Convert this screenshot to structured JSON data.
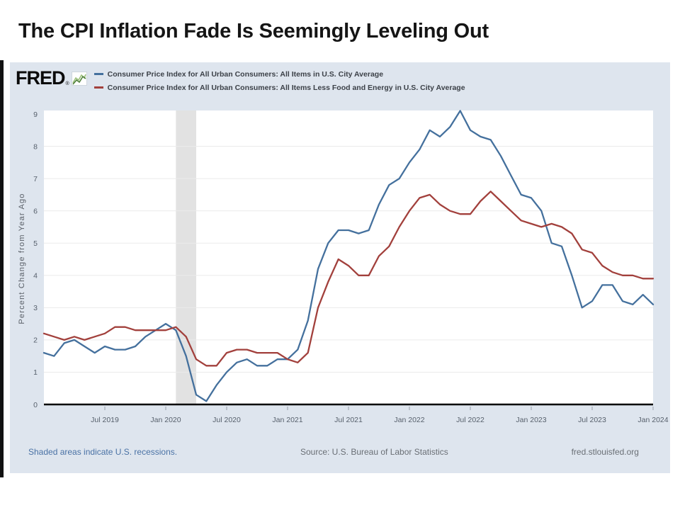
{
  "page": {
    "title": "The CPI Inflation Fade Is Seemingly Leveling Out"
  },
  "chart": {
    "brand": {
      "name": "FRED",
      "reg": "®"
    },
    "legend": [
      {
        "label": "Consumer Price Index for All Urban Consumers: All Items in U.S. City Average",
        "color": "#44709d"
      },
      {
        "label": "Consumer Price Index for All Urban Consumers: All Items Less Food and Energy in U.S. City Average",
        "color": "#a2403c"
      }
    ],
    "footer": {
      "recessions_note": "Shaded areas indicate U.S. recessions.",
      "source": "Source: U.S. Bureau of Labor Statistics",
      "site": "fred.stlouisfed.org"
    },
    "colors": {
      "container_bg": "#dee5ee",
      "plot_bg": "#ffffff",
      "grid": "#ebebeb",
      "recession_band": "#e2e2e2",
      "axis": "#000000",
      "tick_label": "#57606c",
      "link_blue": "#4a72a5",
      "footer_gray": "#6a6f75",
      "spark_green_light": "#9bc07a",
      "spark_green_dark": "#4e7f3a"
    }
  },
  "chart_data": {
    "type": "line",
    "title": "",
    "xlabel": "",
    "ylabel": "Percent Change from Year Ago",
    "ylim": [
      0,
      9
    ],
    "yticks": [
      0,
      1,
      2,
      3,
      4,
      5,
      6,
      7,
      8,
      9
    ],
    "grid": true,
    "legend_position": "top",
    "x_unit": "month",
    "x_start": "2019-01",
    "x_end": "2024-01",
    "xtick_first_index": 6,
    "xtick_every_months": 6,
    "xtick_labels": [
      "Jul 2019",
      "Jan 2020",
      "Jul 2020",
      "Jan 2021",
      "Jul 2021",
      "Jan 2022",
      "Jul 2022",
      "Jan 2023",
      "Jul 2023",
      "Jan 2024"
    ],
    "recession_band": {
      "start": "2020-02",
      "end": "2020-04"
    },
    "series": [
      {
        "name": "Consumer Price Index for All Urban Consumers: All Items in U.S. City Average",
        "color": "#44709d",
        "values": [
          1.6,
          1.5,
          1.9,
          2.0,
          1.8,
          1.6,
          1.8,
          1.7,
          1.7,
          1.8,
          2.1,
          2.3,
          2.5,
          2.3,
          1.5,
          0.3,
          0.1,
          0.6,
          1.0,
          1.3,
          1.4,
          1.2,
          1.2,
          1.4,
          1.4,
          1.7,
          2.6,
          4.2,
          5.0,
          5.4,
          5.4,
          5.3,
          5.4,
          6.2,
          6.8,
          7.0,
          7.5,
          7.9,
          8.5,
          8.3,
          8.6,
          9.1,
          8.5,
          8.3,
          8.2,
          7.7,
          7.1,
          6.5,
          6.4,
          6.0,
          5.0,
          4.9,
          4.0,
          3.0,
          3.2,
          3.7,
          3.7,
          3.2,
          3.1,
          3.4,
          3.1
        ]
      },
      {
        "name": "Consumer Price Index for All Urban Consumers: All Items Less Food and Energy in U.S. City Average",
        "color": "#a2403c",
        "values": [
          2.2,
          2.1,
          2.0,
          2.1,
          2.0,
          2.1,
          2.2,
          2.4,
          2.4,
          2.3,
          2.3,
          2.3,
          2.3,
          2.4,
          2.1,
          1.4,
          1.2,
          1.2,
          1.6,
          1.7,
          1.7,
          1.6,
          1.6,
          1.6,
          1.4,
          1.3,
          1.6,
          3.0,
          3.8,
          4.5,
          4.3,
          4.0,
          4.0,
          4.6,
          4.9,
          5.5,
          6.0,
          6.4,
          6.5,
          6.2,
          6.0,
          5.9,
          5.9,
          6.3,
          6.6,
          6.3,
          6.0,
          5.7,
          5.6,
          5.5,
          5.6,
          5.5,
          5.3,
          4.8,
          4.7,
          4.3,
          4.1,
          4.0,
          4.0,
          3.9,
          3.9
        ]
      }
    ]
  }
}
